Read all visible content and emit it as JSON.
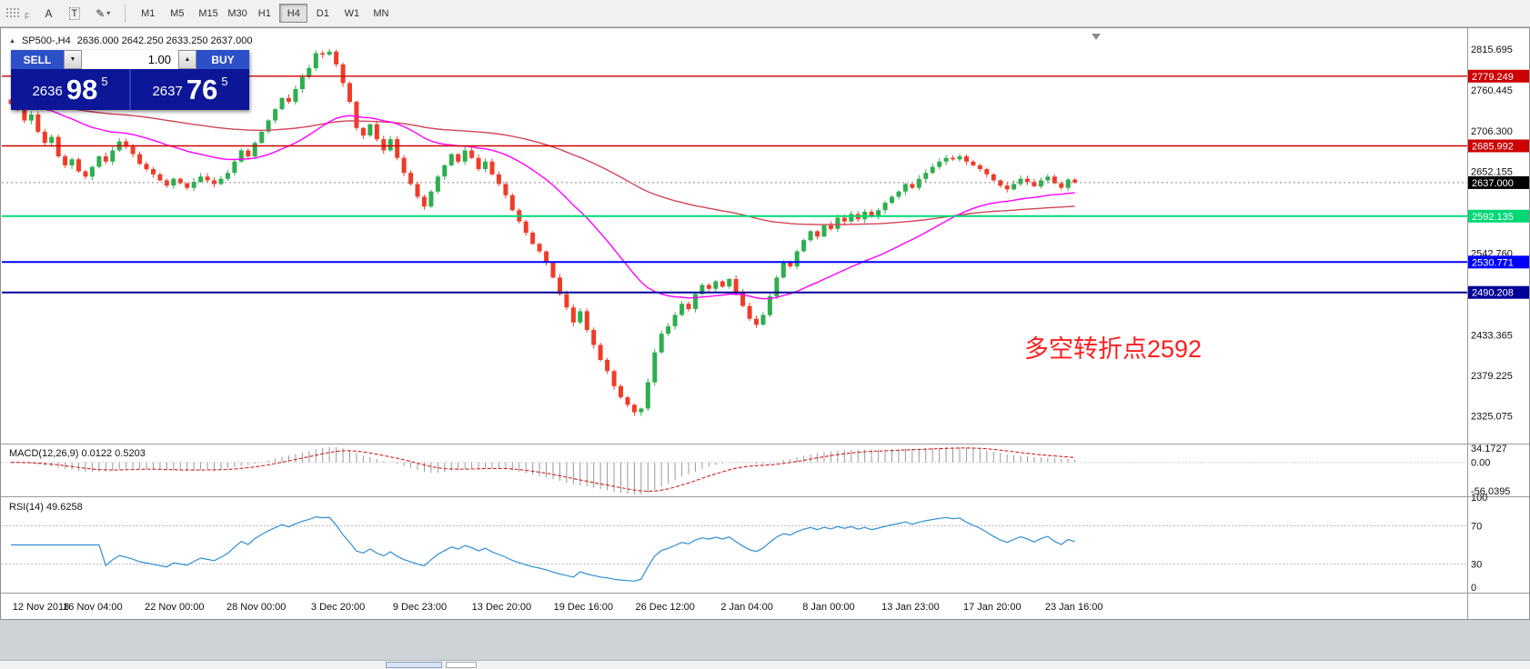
{
  "toolbar": {
    "f_label": "F",
    "text_tool": "A",
    "textbox_tool": "T",
    "timeframes": [
      "M1",
      "M5",
      "M15",
      "M30",
      "H1",
      "H4",
      "D1",
      "W1",
      "MN"
    ],
    "active_timeframe": "H4"
  },
  "chart_header": {
    "symbol": "SP500-,H4",
    "ohlc": "2636.000 2642.250 2633.250 2637.000"
  },
  "trade_panel": {
    "sell_label": "SELL",
    "buy_label": "BUY",
    "volume": "1.00",
    "sell_price": {
      "main": "2636",
      "pips": "98",
      "sup": "5"
    },
    "buy_price": {
      "main": "2637",
      "pips": "76",
      "sup": "5"
    }
  },
  "annotation": {
    "text": "多空转折点2592",
    "color": "#ff1e1e"
  },
  "price_scale": {
    "labels": [
      "2815.695",
      "2760.445",
      "2706.300",
      "2652.155",
      "2542.760",
      "2433.365",
      "2379.225",
      "2325.075"
    ],
    "current": {
      "label": "2637.000",
      "value": 2637.0,
      "bg": "#000000"
    }
  },
  "levels": [
    {
      "value": 2779.249,
      "label": "2779.249",
      "color": "#cc0000",
      "width": 1.4
    },
    {
      "value": 2685.992,
      "label": "2685.992",
      "color": "#cc0000",
      "width": 1.4
    },
    {
      "value": 2592.135,
      "label": "2592.135",
      "color": "#00d875",
      "width": 2
    },
    {
      "value": 2530.771,
      "label": "2530.771",
      "color": "#0000ff",
      "width": 2
    },
    {
      "value": 2490.208,
      "label": "2490.208",
      "color": "#000099",
      "width": 2
    }
  ],
  "chart_data": {
    "type": "candlestick",
    "symbol": "SP500-",
    "timeframe": "H4",
    "y_range": [
      2310,
      2830
    ],
    "up_color": "#2eae4f",
    "down_color": "#ef3c28",
    "closes": [
      2742,
      2735,
      2720,
      2728,
      2705,
      2690,
      2698,
      2672,
      2660,
      2668,
      2652,
      2645,
      2658,
      2672,
      2665,
      2680,
      2692,
      2685,
      2675,
      2662,
      2655,
      2648,
      2640,
      2633,
      2642,
      2636,
      2630,
      2638,
      2645,
      2640,
      2635,
      2642,
      2650,
      2665,
      2680,
      2672,
      2690,
      2705,
      2720,
      2735,
      2750,
      2745,
      2762,
      2778,
      2790,
      2810,
      2808,
      2812,
      2795,
      2770,
      2745,
      2710,
      2700,
      2715,
      2695,
      2680,
      2695,
      2670,
      2650,
      2635,
      2618,
      2605,
      2625,
      2645,
      2660,
      2675,
      2665,
      2680,
      2670,
      2655,
      2665,
      2648,
      2635,
      2620,
      2600,
      2585,
      2570,
      2555,
      2545,
      2530,
      2510,
      2488,
      2470,
      2450,
      2465,
      2440,
      2420,
      2400,
      2385,
      2365,
      2350,
      2340,
      2330,
      2335,
      2370,
      2410,
      2435,
      2445,
      2460,
      2475,
      2468,
      2488,
      2500,
      2495,
      2505,
      2498,
      2508,
      2490,
      2472,
      2455,
      2447,
      2460,
      2485,
      2510,
      2530,
      2525,
      2545,
      2560,
      2572,
      2565,
      2580,
      2575,
      2590,
      2585,
      2595,
      2588,
      2598,
      2592,
      2600,
      2610,
      2618,
      2625,
      2635,
      2630,
      2642,
      2650,
      2658,
      2665,
      2670,
      2668,
      2672,
      2665,
      2660,
      2655,
      2648,
      2640,
      2633,
      2628,
      2635,
      2642,
      2638,
      2632,
      2640,
      2645,
      2636,
      2630,
      2641,
      2637
    ],
    "wick_overrides": {
      "47": {
        "high": 2815.7
      },
      "93": {
        "low": 2325.1
      }
    },
    "x_labels": [
      "12 Nov 2018",
      "16 Nov 04:00",
      "22 Nov 00:00",
      "28 Nov 00:00",
      "3 Dec 20:00",
      "9 Dec 23:00",
      "13 Dec 20:00",
      "19 Dec 16:00",
      "26 Dec 12:00",
      "2 Jan 04:00",
      "8 Jan 00:00",
      "13 Jan 23:00",
      "17 Jan 20:00",
      "23 Jan 16:00"
    ],
    "ma_fast": {
      "period": 34,
      "color": "#ff00ff"
    },
    "ma_slow": {
      "period": 120,
      "color": "#d24558"
    },
    "macd": {
      "label": "MACD(12,26,9) 0.0122 0.5203",
      "fast": 12,
      "slow": 26,
      "signal": 9,
      "scale_labels": [
        "34.1727",
        "0.00",
        "-56.0395"
      ]
    },
    "rsi": {
      "label": "RSI(14) 49.6258",
      "period": 14,
      "color": "#2f8fd4",
      "levels": [
        70,
        30
      ],
      "scale_labels": [
        "100",
        "70",
        "30",
        "0"
      ]
    }
  }
}
